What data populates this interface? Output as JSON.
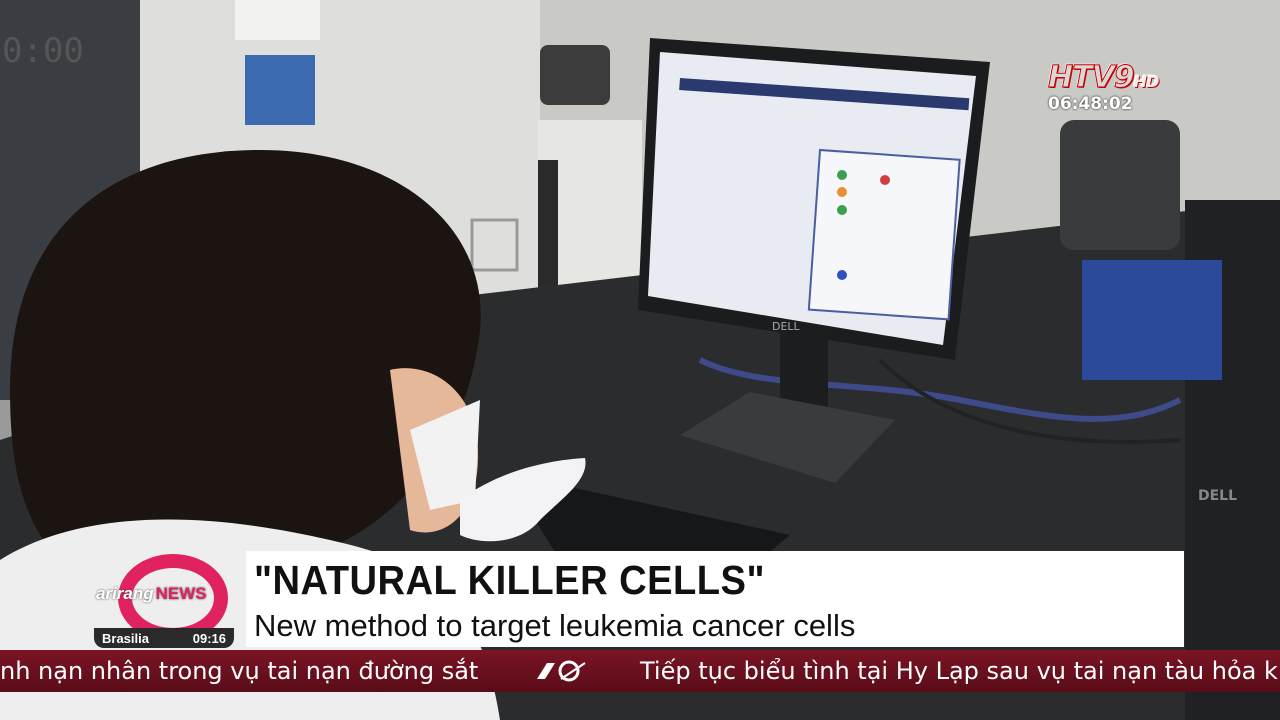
{
  "channel": {
    "logo_text": "HTV9",
    "logo_suffix": "HD",
    "clock": "06:48:02"
  },
  "news_bug": {
    "brand": "arirang",
    "program": "NEWS",
    "city": "Brasilia",
    "time": "09:16"
  },
  "lower_third": {
    "headline": "\"NATURAL KILLER CELLS\"",
    "subhead": "New method to target leukemia cancer cells"
  },
  "ticker": {
    "items": [
      "nh nạn nhân trong vụ tai nạn đường sắt",
      "Tiếp tục biểu tình tại Hy Lạp sau vụ tai nạn tàu hỏa ki"
    ]
  },
  "colors": {
    "ticker_bg": "#6a1020",
    "arirang_pink": "#e0225f"
  }
}
